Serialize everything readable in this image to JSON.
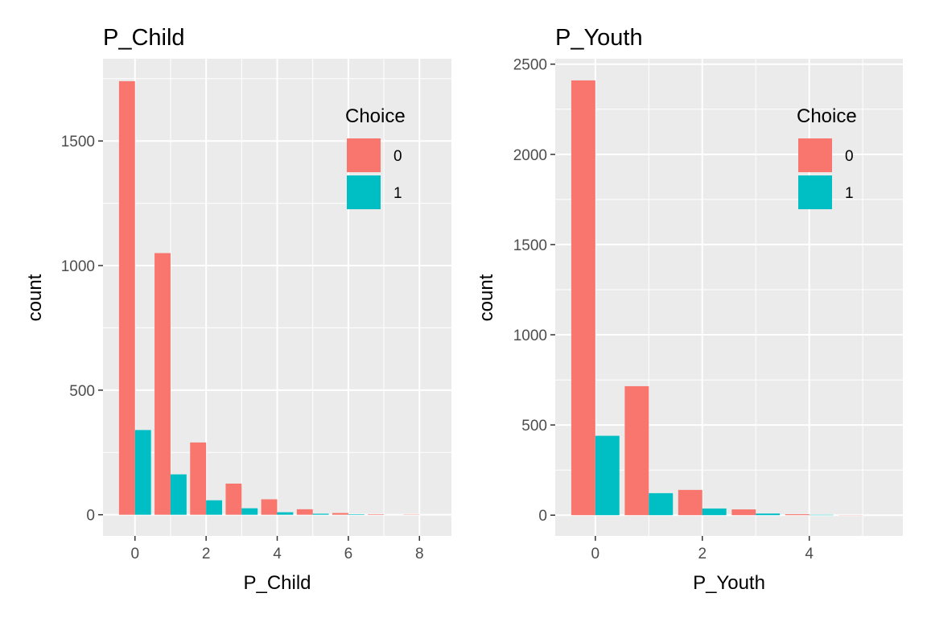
{
  "chart_data": [
    {
      "type": "bar",
      "title": "P_Child",
      "xlabel": "P_Child",
      "ylabel": "count",
      "xlim": [
        -0.9,
        8.9
      ],
      "ylim": [
        -85,
        1830
      ],
      "x_ticks": [
        0,
        2,
        4,
        6,
        8
      ],
      "x_tick_labels": [
        "0",
        "2",
        "4",
        "6",
        "8"
      ],
      "y_ticks": [
        0,
        500,
        1000,
        1500
      ],
      "y_tick_labels": [
        "0",
        "500",
        "1000",
        "1500"
      ],
      "grid": true,
      "legend": {
        "title": "Choice",
        "position": "top-right"
      },
      "x": [
        0,
        1,
        2,
        3,
        4,
        5,
        6,
        7,
        8
      ],
      "series": [
        {
          "name": "0",
          "color": "#F8766D",
          "values": [
            1740,
            1050,
            290,
            125,
            62,
            22,
            7,
            2,
            1
          ]
        },
        {
          "name": "1",
          "color": "#00BFC4",
          "values": [
            340,
            162,
            58,
            26,
            10,
            4,
            2,
            0,
            0
          ]
        }
      ]
    },
    {
      "type": "bar",
      "title": "P_Youth",
      "xlabel": "P_Youth",
      "ylabel": "count",
      "xlim": [
        -0.75,
        5.75
      ],
      "ylim": [
        -115,
        2530
      ],
      "x_ticks": [
        0,
        2,
        4
      ],
      "x_tick_labels": [
        "0",
        "2",
        "4"
      ],
      "y_ticks": [
        0,
        500,
        1000,
        1500,
        2000,
        2500
      ],
      "y_tick_labels": [
        "0",
        "500",
        "1000",
        "1500",
        "2000",
        "2500"
      ],
      "grid": true,
      "legend": {
        "title": "Choice",
        "position": "top-right"
      },
      "x": [
        0,
        1,
        2,
        3,
        4,
        5
      ],
      "series": [
        {
          "name": "0",
          "color": "#F8766D",
          "values": [
            2410,
            715,
            140,
            32,
            5,
            1
          ]
        },
        {
          "name": "1",
          "color": "#00BFC4",
          "values": [
            440,
            122,
            37,
            9,
            2,
            0
          ]
        }
      ]
    }
  ]
}
